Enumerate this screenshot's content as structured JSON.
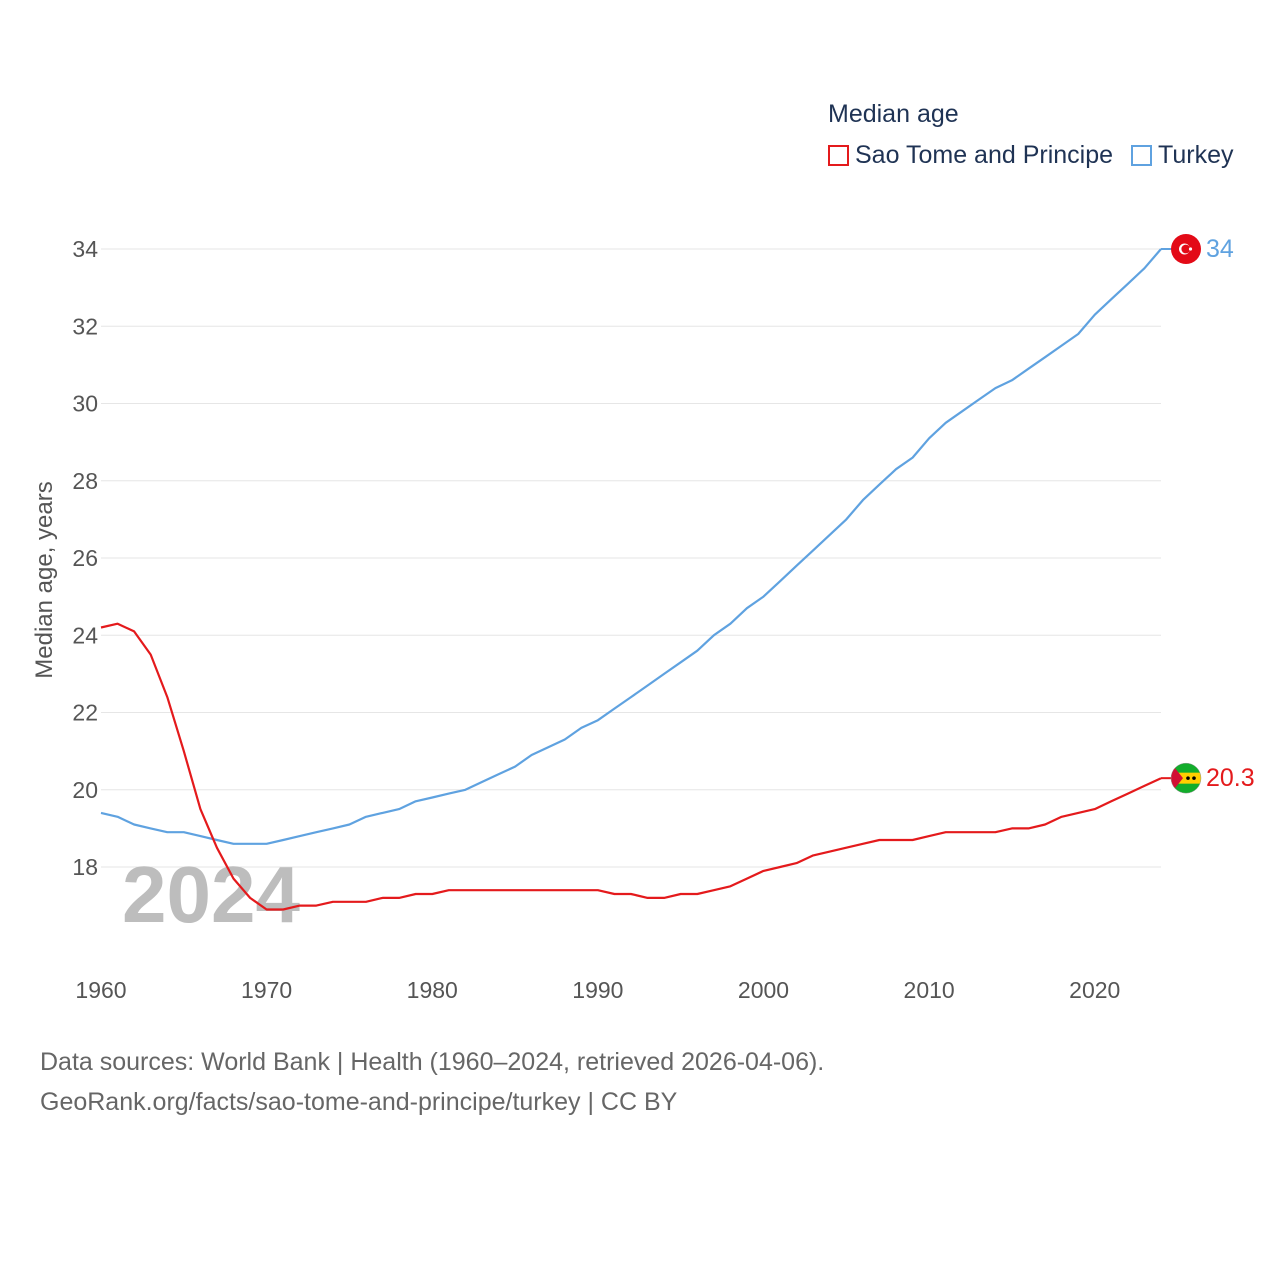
{
  "legend": {
    "title": "Median age",
    "items": [
      {
        "label": "Sao Tome and Principe",
        "color": "#e41a1c"
      },
      {
        "label": "Turkey",
        "color": "#5fa2e0"
      }
    ]
  },
  "footer": {
    "line1": "Data sources: World Bank | Health (1960–2024, retrieved 2026-04-06).",
    "line2": "GeoRank.org/facts/sao-tome-and-principe/turkey | CC BY"
  },
  "chart_data": {
    "type": "line",
    "title": "Median age",
    "ylabel": "Median age, years",
    "xlabel": "",
    "xlim": [
      1960,
      2024
    ],
    "ylim": [
      16.4,
      34.6
    ],
    "grid": true,
    "yticks": [
      18,
      20,
      22,
      24,
      26,
      28,
      30,
      32,
      34
    ],
    "xticks": [
      1960,
      1970,
      1980,
      1990,
      2000,
      2010,
      2020
    ],
    "watermark_year": "2024",
    "series": [
      {
        "name": "Sao Tome and Principe",
        "color": "#e41a1c",
        "end_label": "20.3",
        "flag": "sao-tome-and-principe-flag-icon",
        "x": [
          1960,
          1961,
          1962,
          1963,
          1964,
          1965,
          1966,
          1967,
          1968,
          1969,
          1970,
          1971,
          1972,
          1973,
          1974,
          1975,
          1976,
          1977,
          1978,
          1979,
          1980,
          1981,
          1982,
          1983,
          1984,
          1985,
          1986,
          1987,
          1988,
          1989,
          1990,
          1991,
          1992,
          1993,
          1994,
          1995,
          1996,
          1997,
          1998,
          1999,
          2000,
          2001,
          2002,
          2003,
          2004,
          2005,
          2006,
          2007,
          2008,
          2009,
          2010,
          2011,
          2012,
          2013,
          2014,
          2015,
          2016,
          2017,
          2018,
          2019,
          2020,
          2021,
          2022,
          2023,
          2024
        ],
        "values": [
          24.2,
          24.3,
          24.1,
          23.5,
          22.4,
          21.0,
          19.5,
          18.5,
          17.7,
          17.2,
          16.9,
          16.9,
          17.0,
          17.0,
          17.1,
          17.1,
          17.1,
          17.2,
          17.2,
          17.3,
          17.3,
          17.4,
          17.4,
          17.4,
          17.4,
          17.4,
          17.4,
          17.4,
          17.4,
          17.4,
          17.4,
          17.3,
          17.3,
          17.2,
          17.2,
          17.3,
          17.3,
          17.4,
          17.5,
          17.7,
          17.9,
          18.0,
          18.1,
          18.3,
          18.4,
          18.5,
          18.6,
          18.7,
          18.7,
          18.7,
          18.8,
          18.9,
          18.9,
          18.9,
          18.9,
          19.0,
          19.0,
          19.1,
          19.3,
          19.4,
          19.5,
          19.7,
          19.9,
          20.1,
          20.3
        ]
      },
      {
        "name": "Turkey",
        "color": "#5fa2e0",
        "end_label": "34",
        "flag": "turkey-flag-icon",
        "x": [
          1960,
          1961,
          1962,
          1963,
          1964,
          1965,
          1966,
          1967,
          1968,
          1969,
          1970,
          1971,
          1972,
          1973,
          1974,
          1975,
          1976,
          1977,
          1978,
          1979,
          1980,
          1981,
          1982,
          1983,
          1984,
          1985,
          1986,
          1987,
          1988,
          1989,
          1990,
          1991,
          1992,
          1993,
          1994,
          1995,
          1996,
          1997,
          1998,
          1999,
          2000,
          2001,
          2002,
          2003,
          2004,
          2005,
          2006,
          2007,
          2008,
          2009,
          2010,
          2011,
          2012,
          2013,
          2014,
          2015,
          2016,
          2017,
          2018,
          2019,
          2020,
          2021,
          2022,
          2023,
          2024
        ],
        "values": [
          19.4,
          19.3,
          19.1,
          19.0,
          18.9,
          18.9,
          18.8,
          18.7,
          18.6,
          18.6,
          18.6,
          18.7,
          18.8,
          18.9,
          19.0,
          19.1,
          19.3,
          19.4,
          19.5,
          19.7,
          19.8,
          19.9,
          20.0,
          20.2,
          20.4,
          20.6,
          20.9,
          21.1,
          21.3,
          21.6,
          21.8,
          22.1,
          22.4,
          22.7,
          23.0,
          23.3,
          23.6,
          24.0,
          24.3,
          24.7,
          25.0,
          25.4,
          25.8,
          26.2,
          26.6,
          27.0,
          27.5,
          27.9,
          28.3,
          28.6,
          29.1,
          29.5,
          29.8,
          30.1,
          30.4,
          30.6,
          30.9,
          31.2,
          31.5,
          31.8,
          32.3,
          32.7,
          33.1,
          33.5,
          34.0
        ]
      }
    ]
  }
}
